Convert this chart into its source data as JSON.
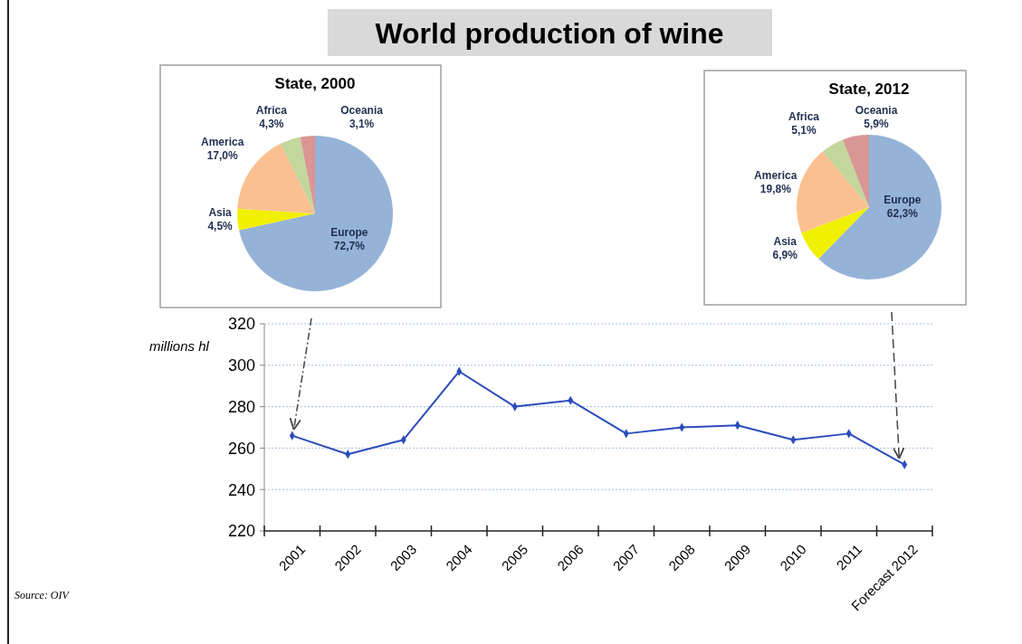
{
  "chart_data": [
    {
      "type": "pie",
      "title": "State, 2000",
      "categories": [
        "Europe",
        "Asia",
        "America",
        "Africa",
        "Oceania"
      ],
      "values": [
        72.7,
        4.5,
        17.0,
        4.3,
        3.1
      ],
      "value_labels": [
        "72,7%",
        "4,5%",
        "17,0%",
        "4,3%",
        "3,1%"
      ],
      "colors": [
        "#95b3d7",
        "#f0f000",
        "#fac090",
        "#c3d69b",
        "#d99694"
      ]
    },
    {
      "type": "pie",
      "title": "State, 2012",
      "categories": [
        "Europe",
        "Asia",
        "America",
        "Africa",
        "Oceania"
      ],
      "values": [
        62.3,
        6.9,
        19.8,
        5.1,
        5.9
      ],
      "value_labels": [
        "62,3%",
        "6,9%",
        "19,8%",
        "5,1%",
        "5,9%"
      ],
      "colors": [
        "#95b3d7",
        "#f0f000",
        "#fac090",
        "#c3d69b",
        "#d99694"
      ]
    },
    {
      "type": "line",
      "title": "World production of wine",
      "ylabel": "millions hl",
      "annotations": [
        "Source: OIV"
      ],
      "categories": [
        "2001",
        "2002",
        "2003",
        "2004",
        "2005",
        "2006",
        "2007",
        "2008",
        "2009",
        "2010",
        "2011",
        "Forecast 2012"
      ],
      "series": [
        {
          "color": "#2c4cbd",
          "values": [
            266,
            257,
            264,
            297,
            280,
            283,
            267,
            270,
            271,
            264,
            267,
            252
          ]
        }
      ],
      "ylim": [
        220,
        320
      ],
      "yticks": [
        220,
        240,
        260,
        280,
        300,
        320
      ],
      "grid": "y",
      "marker": "diamond",
      "line_style": "solid"
    }
  ]
}
